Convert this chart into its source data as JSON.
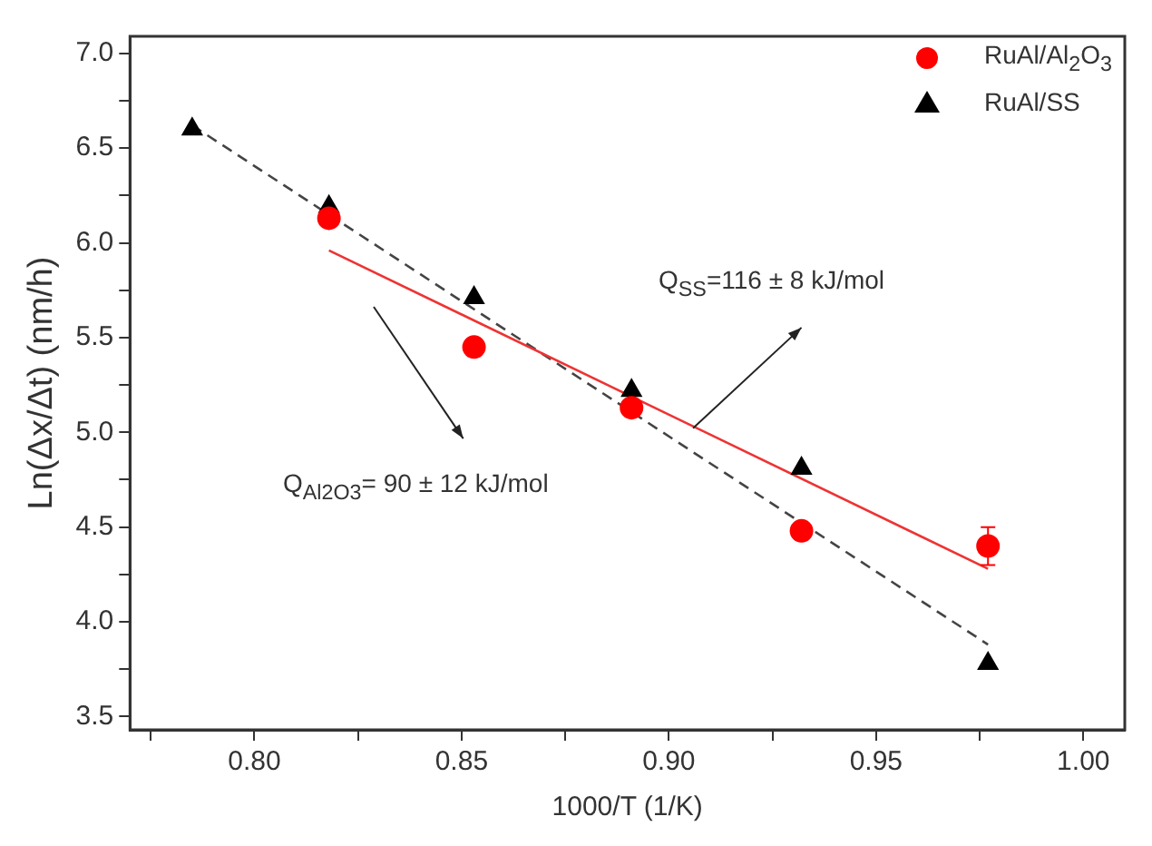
{
  "chart_data": {
    "type": "scatter",
    "xlabel": "1000/T (1/K)",
    "ylabel": "Ln(Δx/Δt) (nm/h)",
    "xlim": [
      0.77,
      1.01
    ],
    "ylim": [
      3.43,
      7.09
    ],
    "xticks": [
      {
        "value": 0.775,
        "label": null
      },
      {
        "value": 0.8,
        "label": "0.80"
      },
      {
        "value": 0.825,
        "label": null
      },
      {
        "value": 0.85,
        "label": "0.85"
      },
      {
        "value": 0.875,
        "label": null
      },
      {
        "value": 0.9,
        "label": "0.90"
      },
      {
        "value": 0.925,
        "label": null
      },
      {
        "value": 0.95,
        "label": "0.95"
      },
      {
        "value": 0.975,
        "label": null
      },
      {
        "value": 1.0,
        "label": "1.00"
      }
    ],
    "yticks": [
      {
        "value": 3.5,
        "label": "3.5"
      },
      {
        "value": 3.75,
        "label": null
      },
      {
        "value": 4.0,
        "label": "4.0"
      },
      {
        "value": 4.25,
        "label": null
      },
      {
        "value": 4.5,
        "label": "4.5"
      },
      {
        "value": 4.75,
        "label": null
      },
      {
        "value": 5.0,
        "label": "5.0"
      },
      {
        "value": 5.25,
        "label": null
      },
      {
        "value": 5.5,
        "label": "5.5"
      },
      {
        "value": 5.75,
        "label": null
      },
      {
        "value": 6.0,
        "label": "6.0"
      },
      {
        "value": 6.25,
        "label": null
      },
      {
        "value": 6.5,
        "label": "6.5"
      },
      {
        "value": 6.75,
        "label": null
      },
      {
        "value": 7.0,
        "label": "7.0"
      }
    ],
    "grid": false,
    "legend": "top right",
    "series": [
      {
        "name": "RuAl/Al$_{2}$O$_{3}$",
        "color": "#ff0000",
        "marker": "circle",
        "x": [
          0.818,
          0.853,
          0.891,
          0.932,
          0.977
        ],
        "values": [
          6.13,
          5.45,
          5.13,
          4.48,
          4.4
        ],
        "errors": [
          null,
          null,
          null,
          null,
          0.1
        ]
      },
      {
        "name": "RuAl/SS",
        "color": "#000000",
        "marker": "triangle",
        "x": [
          0.785,
          0.818,
          0.853,
          0.891,
          0.932,
          0.977
        ],
        "values": [
          6.6,
          6.19,
          5.71,
          5.22,
          4.81,
          3.78
        ]
      },
      {
        "type": "line",
        "color": "#ee3333",
        "line_style": "solid",
        "x": [
          0.818,
          0.977
        ],
        "values": [
          5.96,
          4.28
        ]
      },
      {
        "type": "line",
        "color": "#444444",
        "line_style": "dashed",
        "x": [
          0.785,
          0.977
        ],
        "values": [
          6.62,
          3.88
        ]
      }
    ],
    "annotations": [
      "Q$_{SS}$=116 ± 8 kJ/mol",
      "Q$_{Al2O3}$= 90 ± 12 kJ/mol"
    ]
  }
}
